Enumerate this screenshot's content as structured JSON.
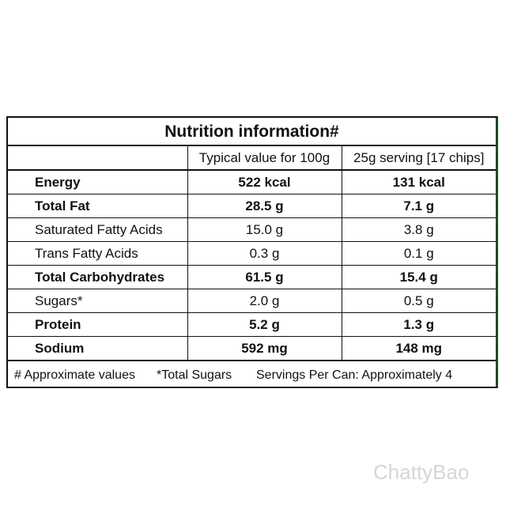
{
  "header": {
    "title": "Nutrition information#"
  },
  "table": {
    "columns": [
      "",
      "Typical value for 100g",
      "25g serving [17 chips]"
    ],
    "rows": [
      [
        "Energy",
        "522 kcal",
        "131 kcal"
      ],
      [
        "Total Fat",
        "28.5 g",
        "7.1 g"
      ],
      [
        "Saturated Fatty Acids",
        "15.0 g",
        "3.8 g"
      ],
      [
        "Trans Fatty Acids",
        "0.3 g",
        "0.1 g"
      ],
      [
        "Total Carbohydrates",
        "61.5 g",
        "15.4 g"
      ],
      [
        "Sugars*",
        "2.0 g",
        "0.5 g"
      ],
      [
        "Protein",
        "5.2 g",
        "1.3 g"
      ],
      [
        "Sodium",
        "592 mg",
        "148 mg"
      ]
    ]
  },
  "footer": [
    "# Approximate values",
    "*Total Sugars",
    "Servings Per Can: Approximately 4"
  ],
  "watermark": "ChattyBao"
}
